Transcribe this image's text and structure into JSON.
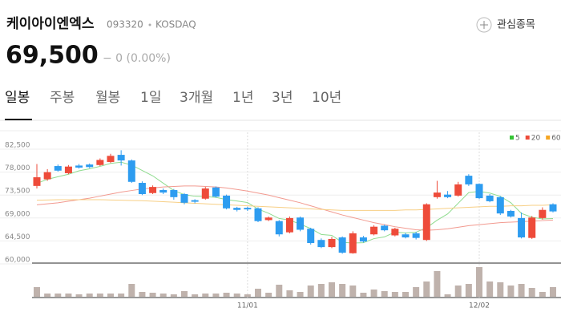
{
  "header": {
    "name": "케이아이엔엑스",
    "code": "093320",
    "market": "KOSDAQ",
    "price": "69,500",
    "change": "− 0 (0.00%)",
    "watch": "관심종목"
  },
  "tabs": [
    "일봉",
    "주봉",
    "월봉",
    "1일",
    "3개월",
    "1년",
    "3년",
    "10년"
  ],
  "active_tab": 0,
  "chart_data": {
    "type": "candlestick",
    "categories": [
      null,
      null,
      null,
      null,
      null,
      null,
      null,
      null,
      null,
      null,
      null,
      null,
      null,
      null,
      null,
      null,
      null,
      null,
      null,
      null,
      "11/01",
      null,
      null,
      null,
      null,
      null,
      null,
      null,
      null,
      null,
      null,
      null,
      null,
      null,
      null,
      null,
      null,
      null,
      null,
      null,
      null,
      null,
      "12/02",
      null,
      null,
      null,
      null,
      null,
      null,
      null
    ],
    "open": [
      74500,
      75800,
      78400,
      77000,
      78500,
      78700,
      78600,
      79200,
      80600,
      79500,
      75100,
      73100,
      73700,
      73700,
      72900,
      71700,
      72000,
      74200,
      72600,
      70200,
      70200,
      70100,
      67800,
      67600,
      65400,
      68300,
      66100,
      63900,
      62500,
      64400,
      61300,
      64400,
      65000,
      66700,
      64800,
      65000,
      65200,
      63900,
      72300,
      72800,
      72600,
      76500,
      74900,
      72600,
      72300,
      69600,
      68200,
      64300,
      68200,
      70900
    ],
    "high": [
      78800,
      77800,
      78700,
      78600,
      78800,
      78900,
      79900,
      80800,
      81500,
      79700,
      75400,
      74600,
      74000,
      73900,
      73100,
      71900,
      74300,
      74400,
      72800,
      70400,
      70400,
      70300,
      68500,
      67800,
      68500,
      68500,
      66300,
      64200,
      64500,
      64600,
      65600,
      64700,
      66800,
      66900,
      66300,
      65300,
      65500,
      71100,
      75500,
      73500,
      75300,
      76800,
      75000,
      72900,
      72500,
      69800,
      69300,
      68600,
      70300,
      71100
    ],
    "low": [
      74000,
      75500,
      77300,
      76800,
      77900,
      78000,
      78400,
      79000,
      78500,
      75100,
      72700,
      72900,
      72900,
      71800,
      70900,
      71100,
      71800,
      72200,
      69900,
      69500,
      69600,
      67400,
      67600,
      64600,
      65200,
      65600,
      63000,
      62300,
      62300,
      61200,
      61200,
      63400,
      64800,
      65600,
      64600,
      64200,
      64000,
      63700,
      72000,
      72100,
      72400,
      74500,
      71900,
      71300,
      68800,
      68300,
      64200,
      64100,
      67900,
      69300
    ],
    "close": [
      76200,
      77200,
      77500,
      78300,
      78100,
      78200,
      79600,
      80400,
      79500,
      75300,
      72900,
      74300,
      73200,
      72300,
      71200,
      71400,
      74000,
      72400,
      70100,
      69800,
      69900,
      67600,
      68300,
      65000,
      68200,
      65900,
      63300,
      62500,
      64100,
      61400,
      65200,
      63600,
      66500,
      65800,
      66100,
      64400,
      64300,
      70900,
      73200,
      72300,
      74800,
      74800,
      72100,
      71500,
      69100,
      68500,
      64400,
      68300,
      69800,
      69500
    ],
    "up_color": "#ee4b3a",
    "down_color": "#2d9cf0",
    "series": [
      {
        "name": "5",
        "color": "#8fdc8f",
        "legend_color": "#35c435",
        "values": [
          75000,
          75800,
          76300,
          76800,
          77460,
          77860,
          78340,
          78920,
          79160,
          78600,
          77540,
          76480,
          75040,
          73600,
          72780,
          72480,
          72420,
          72260,
          71820,
          71540,
          71240,
          69960,
          69140,
          68120,
          67800,
          67000,
          66140,
          64980,
          64800,
          63440,
          63300,
          63360,
          64160,
          64500,
          65440,
          65280,
          65420,
          66300,
          67780,
          69020,
          71100,
          73200,
          73440,
          73100,
          72460,
          71200,
          69120,
          68360,
          68020,
          68100
        ]
      },
      {
        "name": "20",
        "color": "#f29a90",
        "legend_color": "#ee4b3a",
        "values": [
          70800,
          71000,
          71200,
          71500,
          71800,
          72100,
          72500,
          72900,
          73300,
          73600,
          73900,
          74100,
          74300,
          74400,
          74500,
          74500,
          74400,
          74300,
          74100,
          73800,
          73500,
          73100,
          72700,
          72200,
          71700,
          71200,
          70600,
          70000,
          69400,
          68800,
          68300,
          67800,
          67300,
          66900,
          66500,
          66200,
          65900,
          65800,
          65900,
          66100,
          66400,
          66700,
          66900,
          67100,
          67300,
          67400,
          67500,
          67600,
          67700,
          67800
        ]
      },
      {
        "name": "60",
        "color": "#f7cf85",
        "legend_color": "#f5a623",
        "values": [
          71700,
          71750,
          71800,
          71800,
          71800,
          71800,
          71800,
          71750,
          71700,
          71650,
          71600,
          71500,
          71400,
          71300,
          71200,
          71100,
          71000,
          70900,
          70800,
          70700,
          70600,
          70500,
          70400,
          70300,
          70200,
          70100,
          70000,
          69900,
          69800,
          69700,
          69700,
          69700,
          69700,
          69700,
          69700,
          69800,
          69800,
          69900,
          70000,
          70100,
          70200,
          70300,
          70400,
          70500,
          70500,
          70600,
          70600,
          70700,
          70700,
          70800
        ]
      }
    ],
    "volume": [
      12,
      4,
      4,
      4,
      3,
      4,
      4,
      4,
      4,
      16,
      6,
      5,
      4,
      3,
      7,
      3,
      4,
      4,
      5,
      4,
      3,
      10,
      5,
      15,
      8,
      6,
      14,
      16,
      18,
      16,
      14,
      5,
      9,
      7,
      6,
      6,
      12,
      19,
      32,
      3,
      14,
      16,
      37,
      19,
      18,
      14,
      16,
      11,
      6,
      12
    ],
    "volume_color": "#bfb2ac",
    "volume_ylim": [
      0,
      40
    ],
    "ylim": [
      60000,
      82500
    ],
    "yticks": [
      {
        "value": 60000,
        "label": "60,000"
      },
      {
        "value": 64500,
        "label": "64,500"
      },
      {
        "value": 69000,
        "label": "69,000"
      },
      {
        "value": 73500,
        "label": "73,500"
      },
      {
        "value": 78000,
        "label": "78,000"
      },
      {
        "value": 82500,
        "label": "82,500"
      }
    ],
    "grid": true
  }
}
